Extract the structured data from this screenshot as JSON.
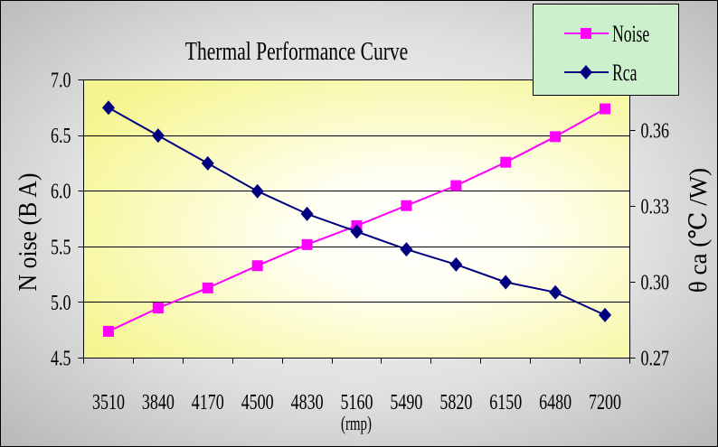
{
  "chart_data": {
    "type": "line",
    "title": "Thermal Performance Curve",
    "xlabel": "(rmp)",
    "ylabel_left": "N oise (B A)",
    "ylabel_right": "θ ca (℃ /W)",
    "categories": [
      "3510",
      "3840",
      "4170",
      "4500",
      "4830",
      "5160",
      "5490",
      "5820",
      "6150",
      "6480",
      "7200"
    ],
    "ylim_left": [
      4.5,
      7.0
    ],
    "yticks_left": [
      "4.5",
      "5.0",
      "5.5",
      "6.0",
      "6.5",
      "7.0"
    ],
    "ylim_right": [
      0.27,
      0.38
    ],
    "yticks_right": [
      "0.27",
      "0.30",
      "0.33",
      "0.36"
    ],
    "grid": true,
    "legend_position": "top-right",
    "series": [
      {
        "name": "Noise",
        "axis": "left",
        "marker": "square",
        "color": "#FF00FF",
        "values": [
          4.74,
          4.95,
          5.13,
          5.33,
          5.52,
          5.69,
          5.87,
          6.05,
          6.26,
          6.49,
          6.74
        ]
      },
      {
        "name": "Rca",
        "axis": "right",
        "marker": "diamond",
        "color": "#000080",
        "values": [
          0.369,
          0.358,
          0.347,
          0.336,
          0.327,
          0.32,
          0.313,
          0.307,
          0.3,
          0.296,
          0.287
        ]
      }
    ]
  },
  "colors": {
    "plot_background": "#F5F58F",
    "legend_background": "#CCEFCC"
  }
}
